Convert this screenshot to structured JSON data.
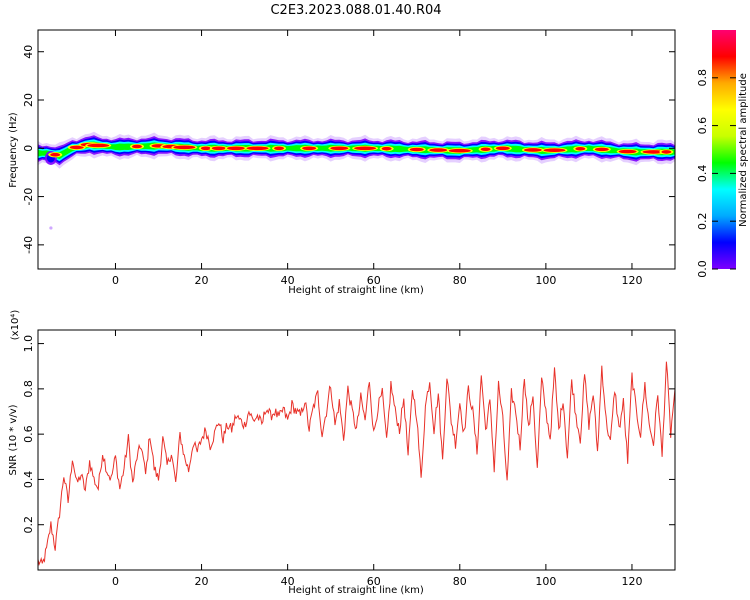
{
  "figure_title": "C2E3.2023.088.01.40.R04",
  "colors": {
    "snr_line": "#e8322a",
    "axis": "#000000",
    "background": "#ffffff",
    "colormap": [
      "#7d00ff",
      "#0000ff",
      "#00aaff",
      "#00ffff",
      "#00ff00",
      "#c8ff00",
      "#ffff00",
      "#ffaa00",
      "#ff0000",
      "#ff0070"
    ]
  },
  "chart_data": [
    {
      "type": "heatmap",
      "title": "",
      "xlabel": "Height of straight line (km)",
      "ylabel": "Frequency (Hz)",
      "xlim": [
        -18,
        130
      ],
      "ylim": [
        -50,
        49
      ],
      "x_ticks": [
        "0",
        "20",
        "40",
        "60",
        "80",
        "100",
        "120"
      ],
      "y_ticks": [
        "-40",
        "-20",
        "0",
        "20",
        "40"
      ],
      "z_label": "Normalized spectral amplitude",
      "z_range": [
        0,
        1
      ],
      "colorbar_ticks": [
        "0.0",
        "0.2",
        "0.4",
        "0.6",
        "0.8"
      ],
      "colorbar_position": "right",
      "band": {
        "description": "narrow high-amplitude band centred near 0 Hz along the whole height range",
        "centerline_x": [
          -16,
          -13,
          -10,
          -6,
          -3,
          0,
          10,
          20,
          40,
          60,
          80,
          90,
          100,
          110,
          120,
          130
        ],
        "centerline_hz": [
          -2,
          -3,
          0,
          1.5,
          1,
          0.5,
          1,
          0,
          0,
          0,
          -1,
          0,
          -1,
          0,
          -1.5,
          -1.5
        ],
        "peak_x": [
          -14,
          -9,
          -6,
          -4,
          5,
          10,
          13,
          16,
          21,
          24,
          28,
          33,
          38,
          45,
          52,
          58,
          63,
          70,
          75,
          80,
          86,
          90,
          97,
          102,
          108,
          113,
          119,
          125,
          128
        ],
        "outlier_point": {
          "x": -15,
          "hz": -33
        }
      },
      "grid": false
    },
    {
      "type": "line",
      "title": "",
      "xlabel": "Height of straight line (km)",
      "ylabel": "SNR (10 * v/v)",
      "y_scale_label": "(x10⁴)",
      "xlim": [
        -18,
        130
      ],
      "ylim": [
        0,
        1.06
      ],
      "x_ticks": [
        "0",
        "20",
        "40",
        "60",
        "80",
        "100",
        "120"
      ],
      "y_ticks": [
        "0.2",
        "0.4",
        "0.6",
        "0.8",
        "1.0"
      ],
      "grid": false,
      "series": [
        {
          "x": [
            -18,
            -17,
            -16,
            -15,
            -14,
            -13,
            -12,
            -11,
            -10,
            -9,
            -8,
            -7,
            -6,
            -5,
            -4,
            -3,
            -2,
            -1,
            0,
            1,
            2,
            3,
            4,
            5,
            6,
            7,
            8,
            9,
            10,
            11,
            12,
            13,
            14,
            15,
            16,
            17,
            18,
            19,
            20,
            21,
            22,
            23,
            24,
            25,
            26,
            27,
            28,
            29,
            30,
            31,
            32,
            33,
            34,
            35,
            36,
            37,
            38,
            39,
            40,
            41,
            42,
            43,
            44,
            45,
            46,
            47,
            48,
            49,
            50,
            51,
            52,
            53,
            54,
            55,
            56,
            57,
            58,
            59,
            60,
            61,
            62,
            63,
            64,
            65,
            66,
            67,
            68,
            69,
            70,
            71,
            72,
            73,
            74,
            75,
            76,
            77,
            78,
            79,
            80,
            81,
            82,
            83,
            84,
            85,
            86,
            87,
            88,
            89,
            90,
            91,
            92,
            93,
            94,
            95,
            96,
            97,
            98,
            99,
            100,
            101,
            102,
            103,
            104,
            105,
            106,
            107,
            108,
            109,
            110,
            111,
            112,
            113,
            114,
            115,
            116,
            117,
            118,
            119,
            120,
            121,
            122,
            123,
            124,
            125,
            126,
            127,
            128,
            129,
            130
          ],
          "values": [
            0.04,
            0.02,
            0.09,
            0.2,
            0.1,
            0.25,
            0.42,
            0.3,
            0.5,
            0.38,
            0.42,
            0.35,
            0.48,
            0.4,
            0.36,
            0.52,
            0.44,
            0.4,
            0.5,
            0.36,
            0.45,
            0.58,
            0.38,
            0.5,
            0.55,
            0.42,
            0.6,
            0.45,
            0.4,
            0.58,
            0.46,
            0.52,
            0.38,
            0.6,
            0.5,
            0.44,
            0.56,
            0.52,
            0.58,
            0.62,
            0.55,
            0.6,
            0.66,
            0.58,
            0.64,
            0.62,
            0.68,
            0.66,
            0.64,
            0.7,
            0.66,
            0.68,
            0.64,
            0.72,
            0.68,
            0.7,
            0.67,
            0.71,
            0.66,
            0.73,
            0.7,
            0.68,
            0.75,
            0.62,
            0.72,
            0.78,
            0.6,
            0.7,
            0.82,
            0.64,
            0.74,
            0.58,
            0.8,
            0.7,
            0.62,
            0.76,
            0.66,
            0.84,
            0.6,
            0.72,
            0.78,
            0.56,
            0.82,
            0.7,
            0.62,
            0.76,
            0.5,
            0.8,
            0.68,
            0.4,
            0.72,
            0.84,
            0.62,
            0.78,
            0.48,
            0.86,
            0.66,
            0.56,
            0.74,
            0.6,
            0.8,
            0.7,
            0.52,
            0.86,
            0.62,
            0.74,
            0.45,
            0.82,
            0.66,
            0.38,
            0.78,
            0.7,
            0.54,
            0.86,
            0.62,
            0.78,
            0.44,
            0.84,
            0.7,
            0.58,
            0.88,
            0.62,
            0.76,
            0.5,
            0.84,
            0.68,
            0.58,
            0.86,
            0.64,
            0.78,
            0.52,
            0.9,
            0.66,
            0.56,
            0.8,
            0.62,
            0.74,
            0.48,
            0.86,
            0.7,
            0.6,
            0.82,
            0.64,
            0.56,
            0.78,
            0.5,
            0.92,
            0.6,
            0.8
          ]
        }
      ]
    }
  ]
}
